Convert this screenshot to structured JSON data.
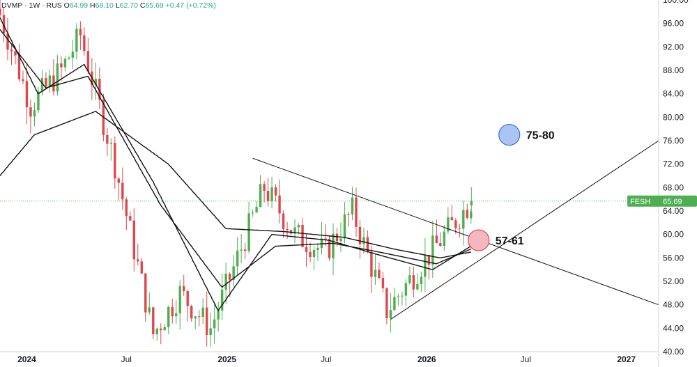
{
  "header": {
    "symbol": "DVMP · 1W · RUS",
    "open_label": "O",
    "open": "64.99",
    "high_label": "H",
    "high": "68.10",
    "low_label": "L",
    "low": "62.70",
    "close_label": "C",
    "close": "65.69",
    "change": "+0.47 (+0.72%)"
  },
  "price_tag": {
    "ticker": "FESH",
    "value": "65.69"
  },
  "colors": {
    "up": "#4caf50",
    "down": "#e0474c",
    "line": "#111111",
    "tag": "#4caf50",
    "blue_marker": "#aac4f5",
    "red_marker": "#f4b7bd"
  },
  "chart_data": {
    "type": "candlestick",
    "title": "DVMP · 1W · RUS",
    "y_axis": {
      "range": [
        40,
        100
      ],
      "ticks": [
        "100.00",
        "96.00",
        "92.00",
        "88.00",
        "84.00",
        "80.00",
        "76.00",
        "72.00",
        "68.00",
        "64.00",
        "60.00",
        "56.00",
        "52.00",
        "48.00",
        "44.00",
        "40.00"
      ]
    },
    "x_axis": {
      "ticks": [
        "2024",
        "Jul",
        "2025",
        "Jul",
        "2026",
        "Jul",
        "2027"
      ],
      "start": "2023-11-13",
      "end": "2027-03-01"
    },
    "last_price": 65.69,
    "key_closes": [
      {
        "date": "2023-11-13",
        "close": 97.5
      },
      {
        "date": "2024-01-08",
        "close": 82
      },
      {
        "date": "2024-03-04",
        "close": 88
      },
      {
        "date": "2024-04-08",
        "close": 94
      },
      {
        "date": "2024-06-10",
        "close": 72
      },
      {
        "date": "2024-08-19",
        "close": 43
      },
      {
        "date": "2024-10-07",
        "close": 50
      },
      {
        "date": "2024-12-02",
        "close": 44
      },
      {
        "date": "2025-03-10",
        "close": 68
      },
      {
        "date": "2025-05-05",
        "close": 60
      },
      {
        "date": "2025-06-30",
        "close": 57
      },
      {
        "date": "2025-08-18",
        "close": 64
      },
      {
        "date": "2025-10-20",
        "close": 47
      },
      {
        "date": "2025-12-15",
        "close": 54
      },
      {
        "date": "2026-03-23",
        "close": 65.69
      }
    ],
    "moving_averages": [
      {
        "name": "MA fast",
        "points": [
          [
            "2023-11-13",
            97
          ],
          [
            "2024-01-22",
            84
          ],
          [
            "2024-04-15",
            89
          ],
          [
            "2024-08-19",
            69
          ],
          [
            "2024-12-16",
            47
          ],
          [
            "2025-03-24",
            60
          ],
          [
            "2025-07-07",
            59
          ],
          [
            "2025-10-06",
            56.5
          ],
          [
            "2026-01-12",
            54
          ],
          [
            "2026-03-23",
            58
          ]
        ]
      },
      {
        "name": "MA medium",
        "points": [
          [
            "2023-11-13",
            95
          ],
          [
            "2024-02-05",
            85
          ],
          [
            "2024-04-22",
            87
          ],
          [
            "2024-09-02",
            65
          ],
          [
            "2024-12-23",
            51
          ],
          [
            "2025-03-31",
            58
          ],
          [
            "2025-07-14",
            58.5
          ],
          [
            "2025-10-06",
            57
          ],
          [
            "2026-01-19",
            55
          ],
          [
            "2026-03-23",
            57.5
          ]
        ]
      },
      {
        "name": "MA slow",
        "points": [
          [
            "2023-11-13",
            70
          ],
          [
            "2024-01-15",
            77
          ],
          [
            "2024-05-06",
            81
          ],
          [
            "2024-09-16",
            72
          ],
          [
            "2024-12-30",
            61
          ],
          [
            "2025-04-14",
            60.5
          ],
          [
            "2025-08-04",
            59.5
          ],
          [
            "2025-11-03",
            57.5
          ],
          [
            "2026-01-26",
            56
          ],
          [
            "2026-03-23",
            57
          ]
        ]
      }
    ],
    "trendlines": [
      {
        "name": "descending resistance",
        "from": [
          "2025-02-17",
          73
        ],
        "to": [
          "2027-03-01",
          48
        ]
      },
      {
        "name": "ascending support",
        "from": [
          "2025-10-27",
          45.5
        ],
        "to": [
          "2027-03-01",
          76
        ]
      }
    ],
    "annotations": [
      {
        "label": "75-80",
        "date": "2026-06-01",
        "price": 77,
        "marker": "blue circle"
      },
      {
        "label": "57-61",
        "date": "2026-04-06",
        "price": 59,
        "marker": "red circle"
      }
    ]
  }
}
